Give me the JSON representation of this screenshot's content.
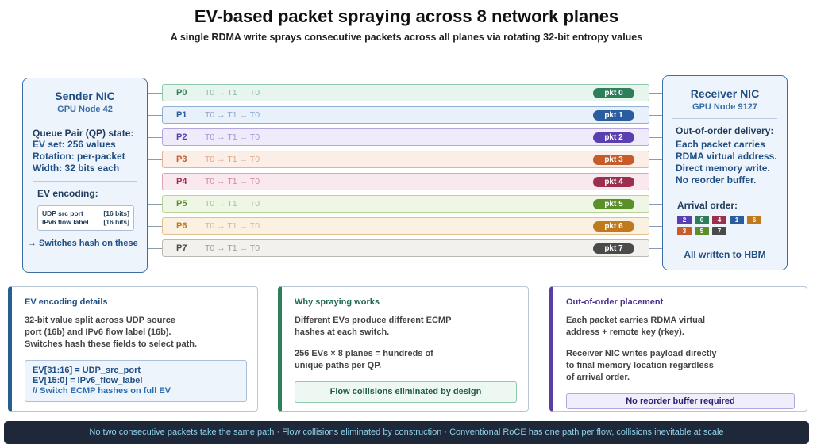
{
  "title": "EV-based packet spraying across 8 network planes",
  "subtitle": "A single RDMA write sprays consecutive packets across all planes via rotating 32-bit entropy values",
  "sender": {
    "title": "Sender NIC",
    "subtitle": "GPU Node 42",
    "qp_heading": "Queue Pair (QP) state:",
    "qp_lines": [
      "EV set: 256 values",
      "Rotation: per-packet",
      "Width: 32 bits each"
    ],
    "enc_heading": "EV encoding:",
    "enc_rows": [
      {
        "field": "UDP src port",
        "bits": "[16 bits]"
      },
      {
        "field": "IPv6 flow label",
        "bits": "[16 bits]"
      }
    ],
    "switch_note": "→ Switches hash on these"
  },
  "receiver": {
    "title": "Receiver NIC",
    "subtitle": "GPU Node 9127",
    "ooo_heading": "Out-of-order delivery:",
    "ooo_lines": [
      "Each packet carries",
      "RDMA virtual address.",
      "Direct memory write.",
      "No reorder buffer."
    ],
    "arrival_heading": "Arrival order:",
    "arrival": [
      "2",
      "0",
      "4",
      "1",
      "6",
      "3",
      "5",
      "7"
    ],
    "hbm": "All written to HBM"
  },
  "planes": [
    {
      "id": "P0",
      "seq": "T0 → T1 → T0",
      "pkt": "pkt 0",
      "color": "#2e7d5b",
      "bg": "#e8f5ee",
      "border": "#8ec9a9"
    },
    {
      "id": "P1",
      "seq": "T0 → T1 → T0",
      "pkt": "pkt 1",
      "color": "#2a5d9f",
      "bg": "#e8f0fa",
      "border": "#90b0d8"
    },
    {
      "id": "P2",
      "seq": "T0 → T1 → T0",
      "pkt": "pkt 2",
      "color": "#5a3fb0",
      "bg": "#efebfb",
      "border": "#b3a6df"
    },
    {
      "id": "P3",
      "seq": "T0 → T1 → T0",
      "pkt": "pkt 3",
      "color": "#c75c2a",
      "bg": "#fbeee6",
      "border": "#e5b297"
    },
    {
      "id": "P4",
      "seq": "T0 → T1 → T0",
      "pkt": "pkt 4",
      "color": "#9c2f4e",
      "bg": "#f9e9ee",
      "border": "#dca3b5"
    },
    {
      "id": "P5",
      "seq": "T0 → T1 → T0",
      "pkt": "pkt 5",
      "color": "#5b8f2a",
      "bg": "#eff6e6",
      "border": "#b6d594"
    },
    {
      "id": "P6",
      "seq": "T0 → T1 → T0",
      "pkt": "pkt 6",
      "color": "#c07a1e",
      "bg": "#fbf1e3",
      "border": "#e2c08e"
    },
    {
      "id": "P7",
      "seq": "T0 → T1 → T0",
      "pkt": "pkt 7",
      "color": "#4a4a4a",
      "bg": "#f2f1ee",
      "border": "#bdbab3"
    }
  ],
  "cards": {
    "ev": {
      "title": "EV encoding details",
      "text": [
        "32-bit value split across UDP source",
        "port (16b) and IPv6 flow label (16b).",
        "Switches hash these fields to select path."
      ],
      "code": [
        "EV[31:16] = UDP_src_port",
        "EV[15:0] = IPv6_flow_label",
        "// Switch ECMP hashes on full EV"
      ]
    },
    "why": {
      "title": "Why spraying works",
      "text1": [
        "Different EVs produce different ECMP",
        "hashes at each switch."
      ],
      "text2": [
        "256 EVs × 8 planes = hundreds of",
        "unique paths per QP."
      ],
      "callout": "Flow collisions eliminated by design"
    },
    "ooo": {
      "title": "Out-of-order placement",
      "text1": [
        "Each packet carries RDMA virtual",
        "address + remote key (rkey)."
      ],
      "text2": [
        "Receiver NIC writes payload directly",
        "to final memory location regardless",
        "of arrival order."
      ],
      "callout": "No reorder buffer required"
    }
  },
  "footer": "No two consecutive packets take the same path · Flow collisions eliminated by construction · Conventional RoCE has one path per flow, collisions inevitable at scale"
}
